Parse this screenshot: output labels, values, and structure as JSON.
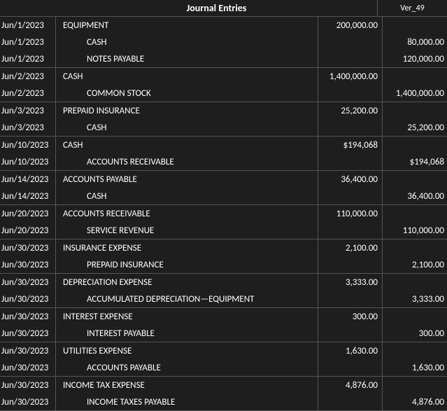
{
  "header": {
    "title": "Journal Entries",
    "version": "Ver_49"
  },
  "colors": {
    "background": "#1e1e1e",
    "text": "#ffffff",
    "border": "#555555"
  },
  "groups": [
    {
      "rows": [
        {
          "date": "Jun/1/2023",
          "account": "EQUIPMENT",
          "type": "debit",
          "debit": "200,000.00",
          "credit": ""
        },
        {
          "date": "Jun/1/2023",
          "account": "CASH",
          "type": "credit",
          "debit": "",
          "credit": "80,000.00"
        },
        {
          "date": "Jun/1/2023",
          "account": "NOTES PAYABLE",
          "type": "credit",
          "debit": "",
          "credit": "120,000.00"
        }
      ]
    },
    {
      "rows": [
        {
          "date": "Jun/2/2023",
          "account": "CASH",
          "type": "debit",
          "debit": "1,400,000.00",
          "credit": ""
        },
        {
          "date": "Jun/2/2023",
          "account": "COMMON STOCK",
          "type": "credit",
          "debit": "",
          "credit": "1,400,000.00"
        }
      ]
    },
    {
      "rows": [
        {
          "date": "Jun/3/2023",
          "account": "PREPAID INSURANCE",
          "type": "debit",
          "debit": "25,200.00",
          "credit": ""
        },
        {
          "date": "Jun/3/2023",
          "account": "CASH",
          "type": "credit",
          "debit": "",
          "credit": "25,200.00"
        }
      ]
    },
    {
      "rows": [
        {
          "date": "Jun/10/2023",
          "account": "CASH",
          "type": "debit",
          "debit": "$194,068",
          "credit": ""
        },
        {
          "date": "Jun/10/2023",
          "account": "ACCOUNTS RECEIVABLE",
          "type": "credit",
          "debit": "",
          "credit": "$194,068"
        }
      ]
    },
    {
      "rows": [
        {
          "date": "Jun/14/2023",
          "account": "ACCOUNTS PAYABLE",
          "type": "debit",
          "debit": "36,400.00",
          "credit": ""
        },
        {
          "date": "Jun/14/2023",
          "account": "CASH",
          "type": "credit",
          "debit": "",
          "credit": "36,400.00"
        }
      ]
    },
    {
      "rows": [
        {
          "date": "Jun/20/2023",
          "account": "ACCOUNTS RECEIVABLE",
          "type": "debit",
          "debit": "110,000.00",
          "credit": ""
        },
        {
          "date": "Jun/20/2023",
          "account": "SERVICE REVENUE",
          "type": "credit",
          "debit": "",
          "credit": "110,000.00"
        }
      ]
    },
    {
      "rows": [
        {
          "date": "Jun/30/2023",
          "account": "INSURANCE EXPENSE",
          "type": "debit",
          "debit": "2,100.00",
          "credit": ""
        },
        {
          "date": "Jun/30/2023",
          "account": "PREPAID INSURANCE",
          "type": "credit",
          "debit": "",
          "credit": "2,100.00"
        }
      ]
    },
    {
      "rows": [
        {
          "date": "Jun/30/2023",
          "account": "DEPRECIATION EXPENSE",
          "type": "debit",
          "debit": "3,333.00",
          "credit": ""
        },
        {
          "date": "Jun/30/2023",
          "account": "ACCUMULATED DEPRECIATION—EQUIPMENT",
          "type": "credit",
          "debit": "",
          "credit": "3,333.00"
        }
      ]
    },
    {
      "rows": [
        {
          "date": "Jun/30/2023",
          "account": "INTEREST EXPENSE",
          "type": "debit",
          "debit": "300.00",
          "credit": ""
        },
        {
          "date": "Jun/30/2023",
          "account": "INTEREST PAYABLE",
          "type": "credit",
          "debit": "",
          "credit": "300.00"
        }
      ]
    },
    {
      "rows": [
        {
          "date": "Jun/30/2023",
          "account": "UTILITIES EXPENSE",
          "type": "debit",
          "debit": "1,630.00",
          "credit": ""
        },
        {
          "date": "Jun/30/2023",
          "account": "ACCOUNTS PAYABLE",
          "type": "credit",
          "debit": "",
          "credit": "1,630.00"
        }
      ]
    },
    {
      "rows": [
        {
          "date": "Jun/30/2023",
          "account": "INCOME TAX EXPENSE",
          "type": "debit",
          "debit": "4,876.00",
          "credit": ""
        },
        {
          "date": "Jun/30/2023",
          "account": "INCOME TAXES PAYABLE",
          "type": "credit",
          "debit": "",
          "credit": "4,876.00"
        }
      ]
    }
  ]
}
